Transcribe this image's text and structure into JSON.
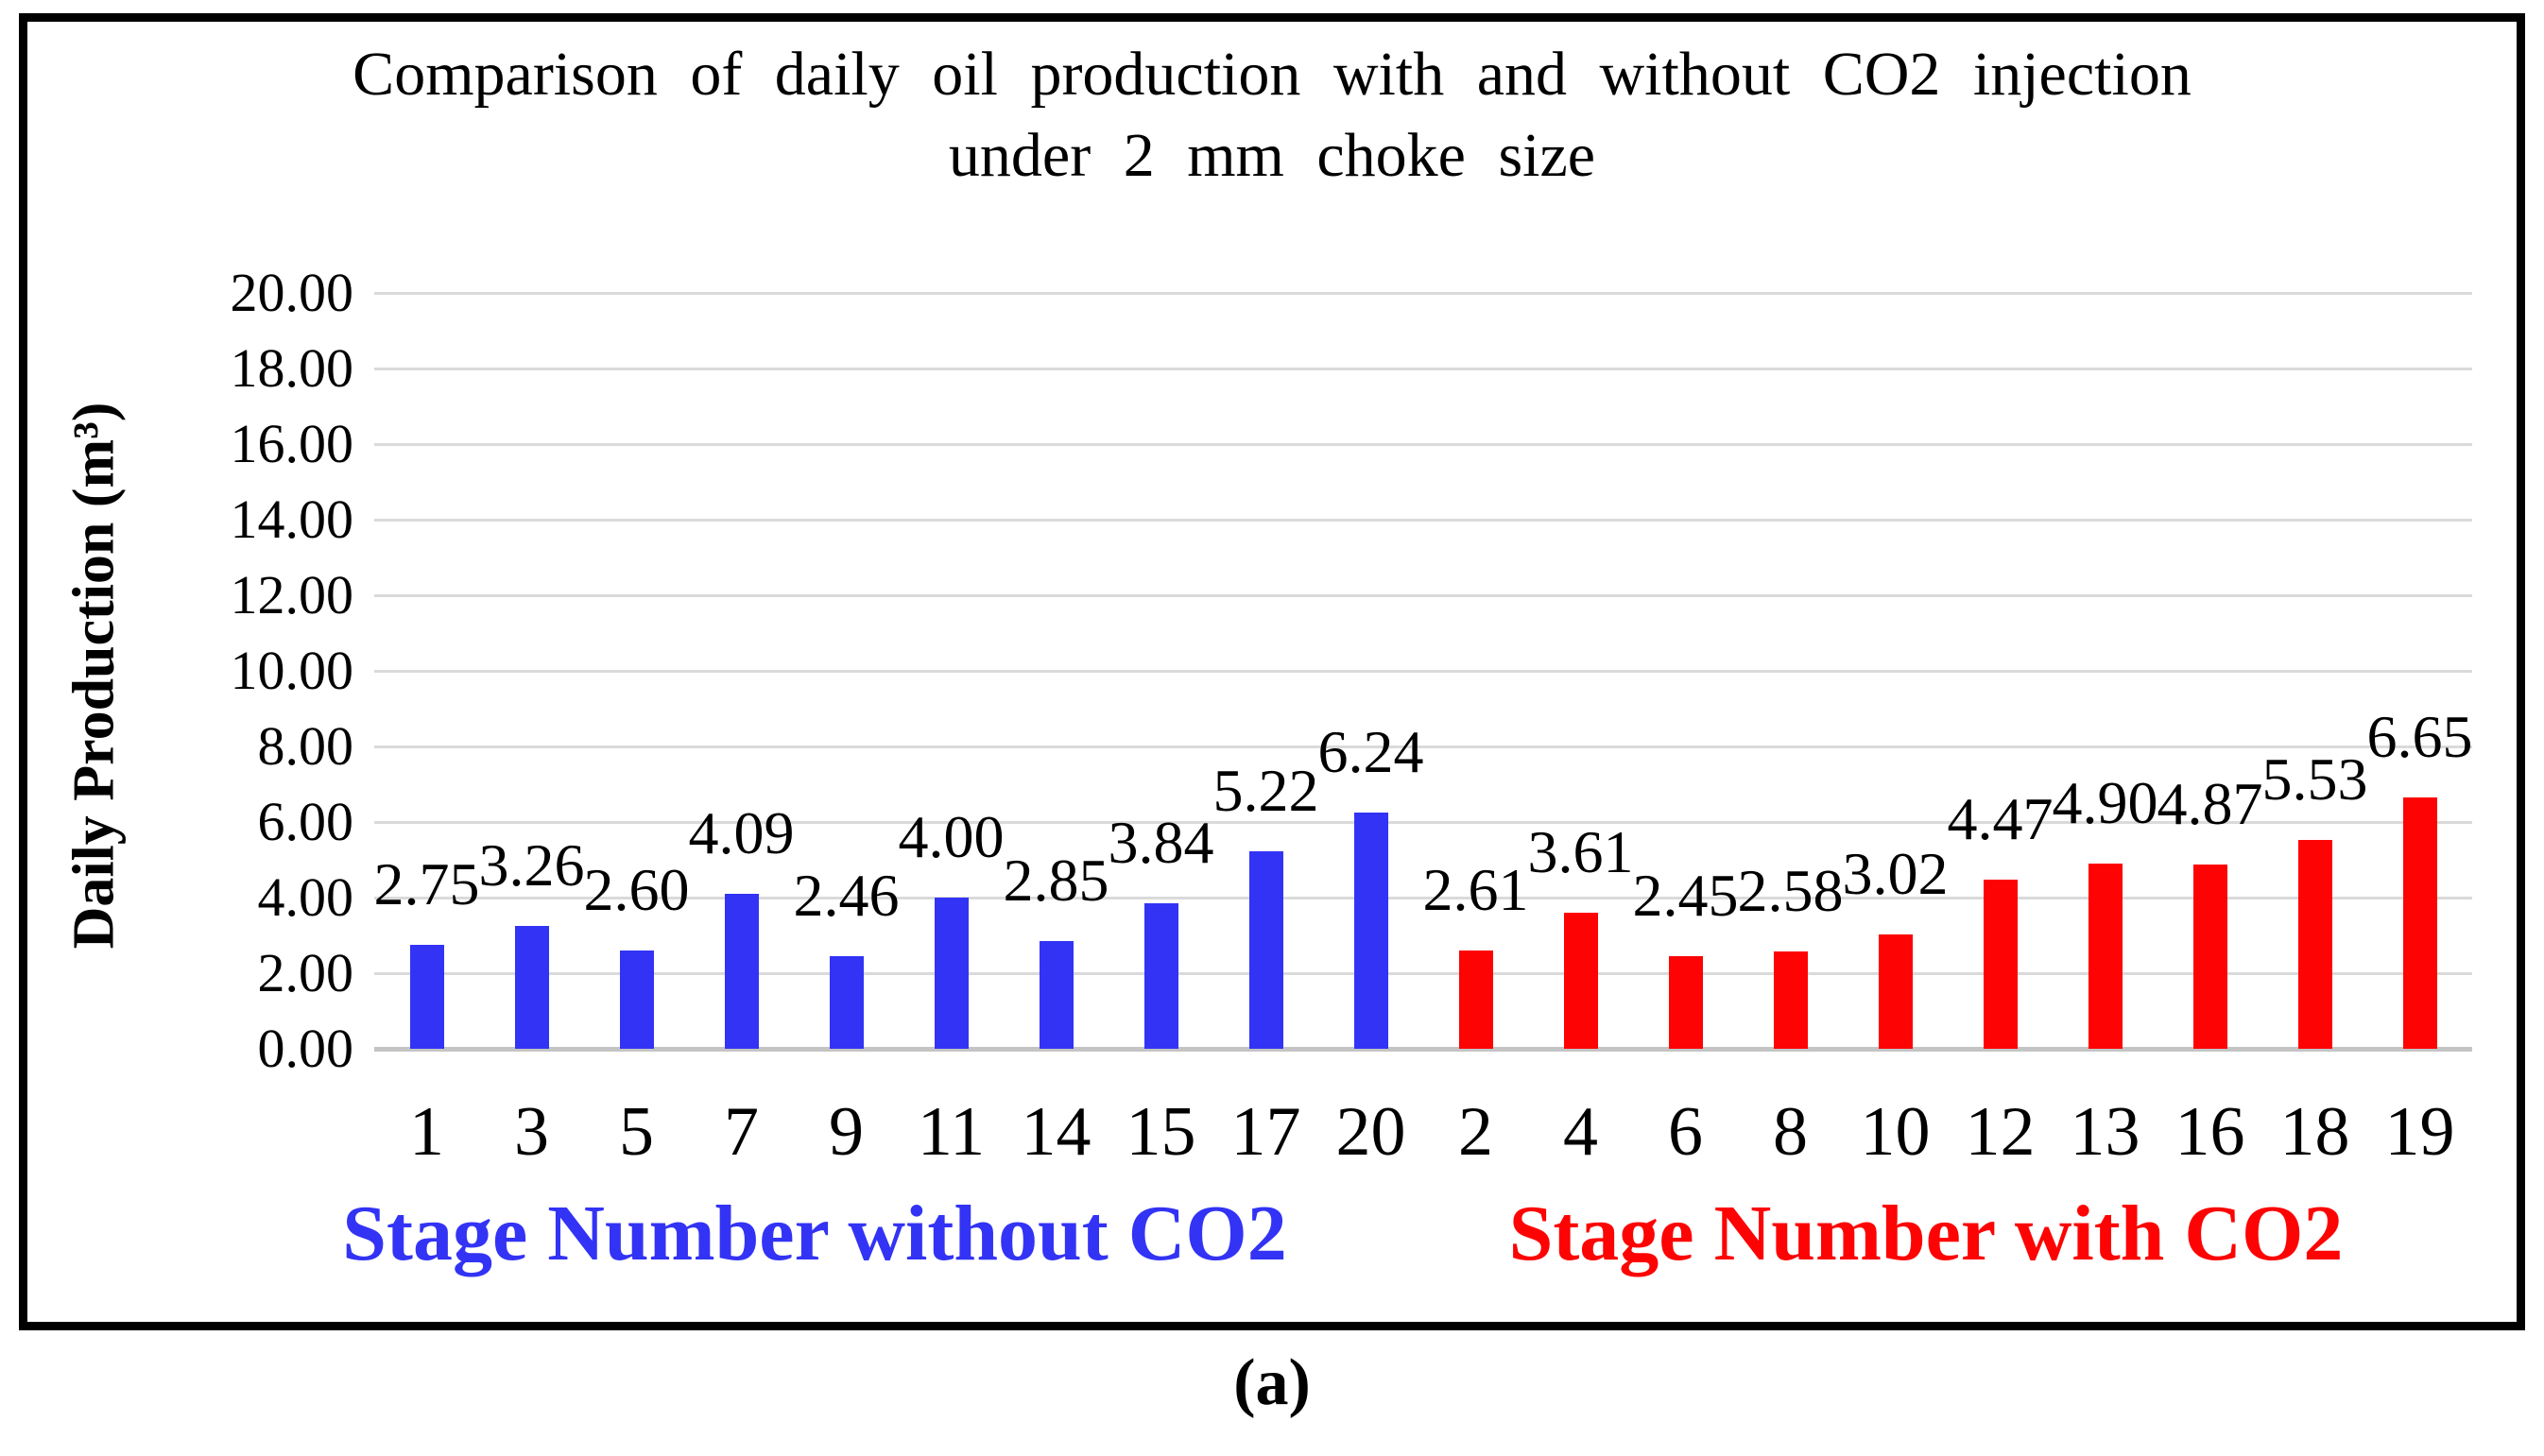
{
  "figure": {
    "title_line1": "Comparison of daily oil production with and without CO2 injection",
    "title_line2": "under 2 mm choke size",
    "caption": "(a)"
  },
  "chart_data": {
    "type": "bar",
    "title": "Comparison of daily oil production with and without CO2 injection under 2 mm choke size",
    "xlabel": "",
    "ylabel": "Daily Production (m³)",
    "ylim": [
      0,
      20
    ],
    "ytick_step": 2,
    "ytick_labels": [
      "20.00",
      "18.00",
      "16.00",
      "14.00",
      "12.00",
      "10.00",
      "8.00",
      "6.00",
      "4.00",
      "2.00",
      "0.00"
    ],
    "grid": true,
    "legend_position": "below-as-colored-axis-labels",
    "series": [
      {
        "name": "Stage Number without CO2",
        "color": "#3333F5",
        "categories": [
          "1",
          "3",
          "5",
          "7",
          "9",
          "11",
          "14",
          "15",
          "17",
          "20"
        ],
        "values": [
          2.75,
          3.26,
          2.6,
          4.09,
          2.46,
          4.0,
          2.85,
          3.84,
          5.22,
          6.24
        ],
        "value_labels": [
          "2.75",
          "3.26",
          "2.60",
          "4.09",
          "2.46",
          "4.00",
          "2.85",
          "3.84",
          "5.22",
          "6.24"
        ]
      },
      {
        "name": "Stage Number with CO2",
        "color": "#FD0303",
        "categories": [
          "2",
          "4",
          "6",
          "8",
          "10",
          "12",
          "13",
          "16",
          "18",
          "19"
        ],
        "values": [
          2.61,
          3.61,
          2.45,
          2.58,
          3.02,
          4.47,
          4.9,
          4.87,
          5.53,
          6.65
        ],
        "value_labels": [
          "2.61",
          "3.61",
          "2.45",
          "2.58",
          "3.02",
          "4.47",
          "4.90",
          "4.87",
          "5.53",
          "6.65"
        ]
      }
    ]
  },
  "colors": {
    "bar_without_co2": "#3333F5",
    "bar_with_co2": "#FD0303",
    "gridline": "#DADADA",
    "baseline": "#C4C4C4",
    "frame_border": "#000000",
    "text": "#000000"
  }
}
